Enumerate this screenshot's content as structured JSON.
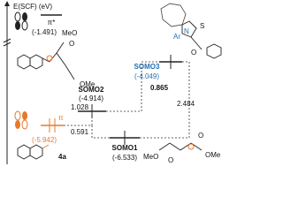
{
  "axis_label": "E(SCF) (eV)",
  "levels": [
    {
      "symbol": "π*",
      "energy": "(-1.491)"
    },
    {
      "symbol": "π",
      "energy": "(-5.942)",
      "compound": "4a"
    },
    {
      "symbol": "SOMO1",
      "energy": "(-6.533)"
    },
    {
      "symbol": "SOMO2",
      "energy": "(-4.914)"
    },
    {
      "symbol": "SOMO3",
      "energy": "(-4.049)"
    }
  ],
  "gaps": [
    "0.865",
    "1.028",
    "2.484",
    "0.591"
  ],
  "molecules": {
    "somo2": [
      "MeO",
      "O",
      "OMe"
    ],
    "somo3": [
      "Ar",
      "N",
      "S",
      "O"
    ],
    "somo1": [
      "MeO",
      "O",
      "OMe",
      "O"
    ]
  }
}
